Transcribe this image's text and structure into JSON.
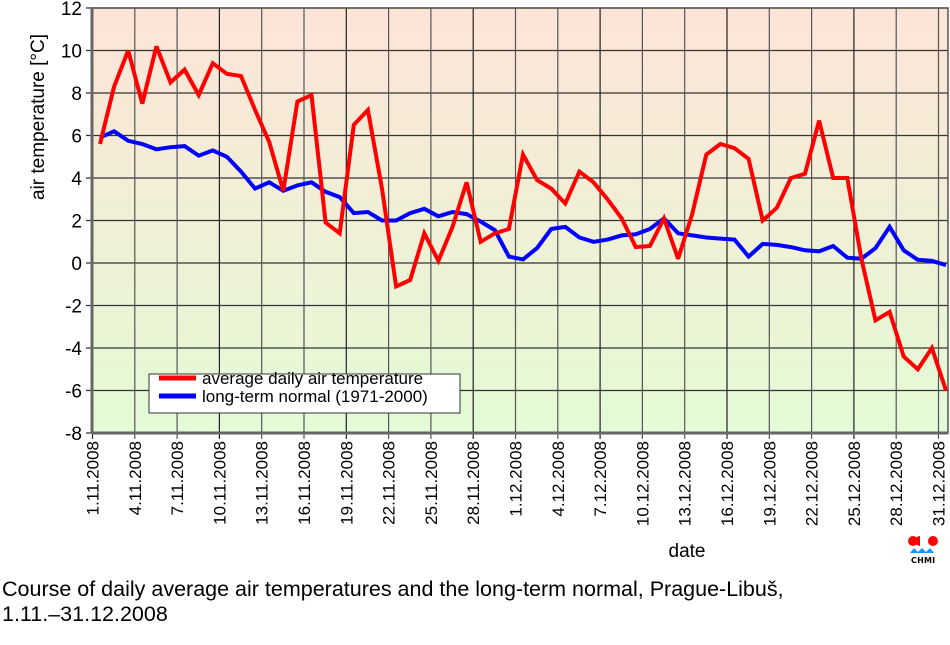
{
  "chart_data": {
    "type": "line",
    "title": "",
    "xlabel": "date",
    "ylabel": "air temperature [°C]",
    "ylim": [
      -8,
      12
    ],
    "yticks": [
      12,
      10,
      8,
      6,
      4,
      2,
      0,
      -2,
      -4,
      -6,
      -8
    ],
    "grid": true,
    "legend_position": "bottom-left",
    "x_start": "1.11.2008",
    "x_end": "31.12.2008",
    "xtick_labels": [
      "1.11.2008",
      "4.11.2008",
      "7.11.2008",
      "10.11.2008",
      "13.11.2008",
      "16.11.2008",
      "19.11.2008",
      "22.11.2008",
      "25.11.2008",
      "28.11.2008",
      "1.12.2008",
      "4.12.2008",
      "7.12.2008",
      "10.12.2008",
      "13.12.2008",
      "16.12.2008",
      "19.12.2008",
      "22.12.2008",
      "25.12.2008",
      "28.12.2008",
      "31.12.2008"
    ],
    "series": [
      {
        "name": "average daily air temperature",
        "color": "#ff0000",
        "values": [
          5.6,
          8.3,
          10.0,
          7.5,
          10.2,
          8.5,
          9.1,
          7.9,
          9.4,
          8.9,
          8.8,
          7.2,
          5.7,
          3.4,
          7.6,
          7.9,
          1.9,
          1.4,
          6.5,
          7.2,
          3.5,
          -1.1,
          -0.8,
          1.4,
          0.1,
          1.7,
          3.8,
          1.0,
          1.4,
          1.6,
          5.1,
          3.9,
          3.5,
          2.8,
          4.3,
          3.8,
          3.0,
          2.1,
          0.75,
          0.8,
          2.1,
          0.2,
          2.3,
          5.1,
          5.6,
          5.4,
          4.9,
          2.0,
          2.6,
          4.0,
          4.2,
          6.7,
          4.0,
          4.0,
          0.2,
          -2.7,
          -2.3,
          -4.4,
          -5.0,
          -4.0,
          -6.0
        ]
      },
      {
        "name": "long-term normal (1971-2000)",
        "color": "#0000ff",
        "values": [
          5.9,
          6.2,
          5.75,
          5.6,
          5.35,
          5.45,
          5.5,
          5.05,
          5.3,
          5.0,
          4.3,
          3.5,
          3.8,
          3.4,
          3.65,
          3.8,
          3.35,
          3.1,
          2.35,
          2.4,
          2.0,
          2.0,
          2.35,
          2.55,
          2.2,
          2.4,
          2.3,
          1.95,
          1.55,
          0.3,
          0.17,
          0.7,
          1.6,
          1.7,
          1.2,
          1.0,
          1.1,
          1.3,
          1.35,
          1.6,
          2.1,
          1.4,
          1.3,
          1.2,
          1.15,
          1.1,
          0.3,
          0.9,
          0.85,
          0.75,
          0.6,
          0.55,
          0.8,
          0.25,
          0.2,
          0.7,
          1.7,
          0.6,
          0.15,
          0.1,
          -0.1
        ]
      }
    ],
    "background_gradient": {
      "top": "#fde4d7",
      "bottom": "#e3fbd6"
    }
  },
  "caption": {
    "line1": "Course of daily average air temperatures and the long-term normal, Prague-Libuš,",
    "line2": "1.11.–31.12.2008"
  },
  "logo": {
    "text": "CHMI",
    "icon": "chmi-logo-icon",
    "red": "#ff0000",
    "blue": "#1e90ff"
  }
}
